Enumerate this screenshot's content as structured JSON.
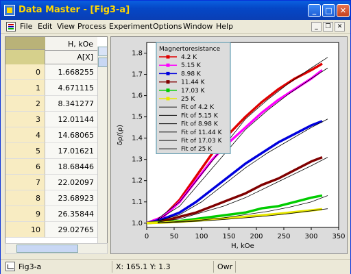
{
  "window": {
    "app_name": "Data Master",
    "title": "Data Master - [Fig3-a]"
  },
  "menu": {
    "items": [
      "File",
      "Edit",
      "View",
      "Process",
      "Experiment",
      "Options",
      "Window",
      "Help"
    ]
  },
  "worksheet": {
    "column_name": "H, kOe",
    "column_label": "A[X]",
    "rows": [
      {
        "index": "0",
        "value": "1.668255"
      },
      {
        "index": "1",
        "value": "4.671115"
      },
      {
        "index": "2",
        "value": "8.341277"
      },
      {
        "index": "3",
        "value": "12.01144"
      },
      {
        "index": "4",
        "value": "14.68065"
      },
      {
        "index": "5",
        "value": "17.01621"
      },
      {
        "index": "6",
        "value": "18.68446"
      },
      {
        "index": "7",
        "value": "22.02097"
      },
      {
        "index": "8",
        "value": "23.68923"
      },
      {
        "index": "9",
        "value": "26.35844"
      },
      {
        "index": "10",
        "value": "29.02765"
      }
    ]
  },
  "chart_data": {
    "type": "scatter",
    "xlabel": "H, kOe",
    "ylabel": "δρ/(ρ)",
    "xlim": [
      0,
      350
    ],
    "ylim": [
      0.98,
      1.85
    ],
    "xticks": [
      0,
      50,
      100,
      150,
      200,
      250,
      300,
      350
    ],
    "yticks": [
      1.0,
      1.1,
      1.2,
      1.3,
      1.4,
      1.5,
      1.6,
      1.7,
      1.8
    ],
    "grid": false,
    "legend_title": "Magnertoresistance",
    "legend_position": "top-left",
    "series": [
      {
        "name": "4.2 K",
        "color": "#e00000",
        "x": [
          0,
          30,
          60,
          90,
          120,
          150,
          180,
          210,
          240,
          270,
          300,
          320
        ],
        "y": [
          1.0,
          1.03,
          1.11,
          1.22,
          1.33,
          1.42,
          1.5,
          1.57,
          1.63,
          1.68,
          1.72,
          1.75
        ]
      },
      {
        "name": "5.15 K",
        "color": "#ff00ff",
        "x": [
          0,
          30,
          60,
          90,
          120,
          150,
          180,
          210,
          240,
          270,
          300,
          320
        ],
        "y": [
          1.0,
          1.03,
          1.1,
          1.2,
          1.3,
          1.38,
          1.45,
          1.52,
          1.58,
          1.63,
          1.68,
          1.72
        ]
      },
      {
        "name": "8.98 K",
        "color": "#0000dd",
        "x": [
          0,
          30,
          60,
          90,
          120,
          150,
          180,
          210,
          240,
          270,
          300,
          320
        ],
        "y": [
          1.0,
          1.02,
          1.05,
          1.1,
          1.16,
          1.22,
          1.28,
          1.33,
          1.38,
          1.42,
          1.46,
          1.48
        ]
      },
      {
        "name": "11.44 K",
        "color": "#800000",
        "x": [
          0,
          30,
          60,
          90,
          120,
          150,
          180,
          210,
          240,
          270,
          300,
          320
        ],
        "y": [
          1.0,
          1.01,
          1.03,
          1.05,
          1.08,
          1.11,
          1.14,
          1.18,
          1.21,
          1.25,
          1.29,
          1.31
        ]
      },
      {
        "name": "17.03 K",
        "color": "#00cc00",
        "x": [
          0,
          30,
          60,
          90,
          120,
          150,
          180,
          210,
          240,
          270,
          300,
          320
        ],
        "y": [
          1.0,
          1.005,
          1.01,
          1.02,
          1.03,
          1.04,
          1.05,
          1.07,
          1.08,
          1.1,
          1.12,
          1.13
        ]
      },
      {
        "name": "25 K",
        "color": "#e8e800",
        "x": [
          0,
          30,
          60,
          90,
          120,
          150,
          180,
          210,
          240,
          270,
          300,
          320
        ],
        "y": [
          1.0,
          1.003,
          1.007,
          1.012,
          1.018,
          1.024,
          1.03,
          1.037,
          1.044,
          1.052,
          1.06,
          1.066
        ]
      }
    ],
    "fits": [
      {
        "name": "Fit of 4.2 K",
        "color": "#000000",
        "x": [
          20,
          60,
          100,
          140,
          180,
          220,
          260,
          300,
          330
        ],
        "y": [
          1.02,
          1.1,
          1.23,
          1.36,
          1.49,
          1.58,
          1.66,
          1.73,
          1.78
        ]
      },
      {
        "name": "Fit of 5.15 K",
        "color": "#000000",
        "x": [
          20,
          60,
          100,
          140,
          180,
          220,
          260,
          300,
          330
        ],
        "y": [
          1.015,
          1.08,
          1.2,
          1.32,
          1.44,
          1.53,
          1.61,
          1.68,
          1.73
        ]
      },
      {
        "name": "Fit of 8.98 K",
        "color": "#000000",
        "x": [
          20,
          60,
          100,
          140,
          180,
          220,
          260,
          300,
          330
        ],
        "y": [
          1.01,
          1.04,
          1.1,
          1.18,
          1.26,
          1.33,
          1.39,
          1.45,
          1.49
        ]
      },
      {
        "name": "Fit of 11.44 K",
        "color": "#000000",
        "x": [
          20,
          60,
          100,
          140,
          180,
          220,
          260,
          300,
          330
        ],
        "y": [
          1.005,
          1.02,
          1.05,
          1.08,
          1.12,
          1.17,
          1.22,
          1.27,
          1.31
        ]
      },
      {
        "name": "Fit of 17.03 K",
        "color": "#000000",
        "x": [
          20,
          60,
          100,
          140,
          180,
          220,
          260,
          300,
          330
        ],
        "y": [
          1.002,
          1.008,
          1.015,
          1.025,
          1.04,
          1.055,
          1.075,
          1.1,
          1.13
        ]
      },
      {
        "name": "Fit of 25 K",
        "color": "#000000",
        "x": [
          20,
          60,
          100,
          140,
          180,
          220,
          260,
          300,
          330
        ],
        "y": [
          1.001,
          1.005,
          1.01,
          1.017,
          1.025,
          1.034,
          1.045,
          1.058,
          1.068
        ]
      }
    ]
  },
  "status": {
    "doc_name": "Fig3-a",
    "coords": "X: 165.1 Y: 1.3",
    "mode": "Owr"
  }
}
